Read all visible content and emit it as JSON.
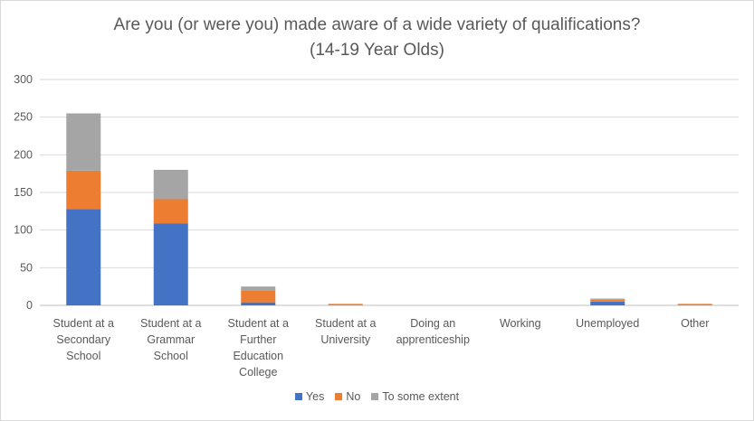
{
  "chart_data": {
    "type": "bar",
    "stacked": true,
    "title": "Are you (or were you) made aware of a wide variety of qualifications?",
    "subtitle": "(14-19 Year Olds)",
    "categories": [
      [
        "Student at a",
        "Secondary",
        "School"
      ],
      [
        "Student at a",
        "Grammar",
        "School"
      ],
      [
        "Student at a",
        "Further",
        "Education",
        "College"
      ],
      [
        "Student at a",
        "University"
      ],
      [
        "Doing an",
        "apprenticeship"
      ],
      [
        "Working"
      ],
      [
        "Unemployed"
      ],
      [
        "Other"
      ]
    ],
    "series": [
      {
        "name": "Yes",
        "color": "#4472c4",
        "values": [
          128,
          109,
          4,
          0,
          0,
          0,
          5,
          0
        ]
      },
      {
        "name": "No",
        "color": "#ed7d31",
        "values": [
          51,
          32,
          16,
          2,
          0,
          0,
          3,
          2
        ]
      },
      {
        "name": "To some extent",
        "color": "#a5a5a5",
        "values": [
          76,
          39,
          5,
          0,
          0,
          0,
          1,
          0
        ]
      }
    ],
    "ylim": [
      0,
      300
    ],
    "yticks": [
      0,
      50,
      100,
      150,
      200,
      250,
      300
    ],
    "grid": true,
    "legend_position": "bottom"
  }
}
